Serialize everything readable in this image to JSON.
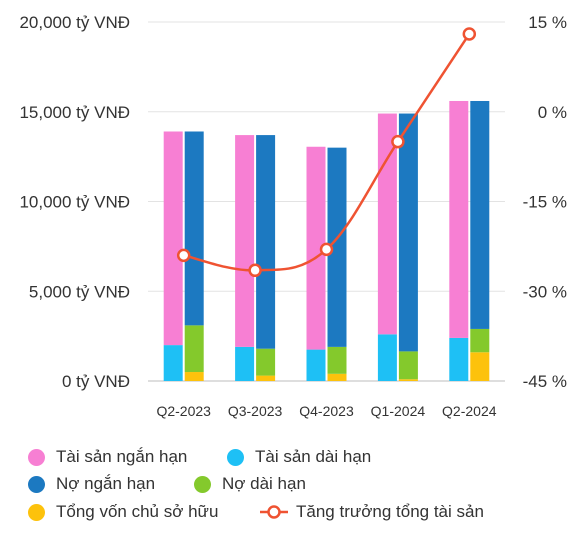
{
  "chart_data": {
    "type": "bar",
    "categories": [
      "Q2-2023",
      "Q3-2023",
      "Q4-2023",
      "Q1-2024",
      "Q2-2024"
    ],
    "left_axis": {
      "ylim": [
        0,
        20000
      ],
      "ticks": [
        0,
        5000,
        10000,
        15000,
        20000
      ],
      "tick_labels": [
        "0 tỷ VNĐ",
        "5,000 tỷ VNĐ",
        "10,000 tỷ VNĐ",
        "15,000 tỷ VNĐ",
        "20,000 tỷ VNĐ"
      ]
    },
    "right_axis": {
      "ylim": [
        -45,
        15
      ],
      "ticks": [
        -45,
        -30,
        -15,
        0,
        15
      ],
      "tick_labels": [
        "-45 %",
        "-30 %",
        "-15 %",
        "0 %",
        "15 %"
      ]
    },
    "stacks": [
      {
        "stack": "assets",
        "series": [
          {
            "name": "Tài sản dài hạn",
            "color": "#1ec0f5",
            "values": [
              2000,
              1900,
              1750,
              2600,
              2400
            ]
          },
          {
            "name": "Tài sản ngắn hạn",
            "color": "#f77fd3",
            "values": [
              11900,
              11800,
              11300,
              12300,
              13200
            ]
          }
        ]
      },
      {
        "stack": "capital",
        "series": [
          {
            "name": "Tổng vốn chủ sở hữu",
            "color": "#fdc20c",
            "values": [
              500,
              300,
              400,
              100,
              1600
            ]
          },
          {
            "name": "Nợ dài hạn",
            "color": "#84c92c",
            "values": [
              2600,
              1500,
              1500,
              1550,
              1300
            ]
          },
          {
            "name": "Nợ ngắn hạn",
            "color": "#1c79c1",
            "values": [
              10800,
              11900,
              11100,
              13250,
              12700
            ]
          }
        ]
      }
    ],
    "line": {
      "name": "Tăng trưởng tổng tài sản",
      "color": "#ef5332",
      "axis": "right",
      "values": [
        -24,
        -26.5,
        -23,
        -5,
        13
      ]
    },
    "grid": true,
    "legend": {
      "position": "bottom",
      "items": [
        {
          "label": "Tài sản ngắn hạn",
          "color": "#f77fd3",
          "marker": "circle"
        },
        {
          "label": "Tài sản dài hạn",
          "color": "#1ec0f5",
          "marker": "circle"
        },
        {
          "label": "Nợ ngắn hạn",
          "color": "#1c79c1",
          "marker": "circle"
        },
        {
          "label": "Nợ dài hạn",
          "color": "#84c92c",
          "marker": "circle"
        },
        {
          "label": "Tổng vốn chủ sở hữu",
          "color": "#fdc20c",
          "marker": "circle"
        },
        {
          "label": "Tăng trưởng tổng tài sản",
          "color": "#ef5332",
          "marker": "line"
        }
      ]
    }
  }
}
